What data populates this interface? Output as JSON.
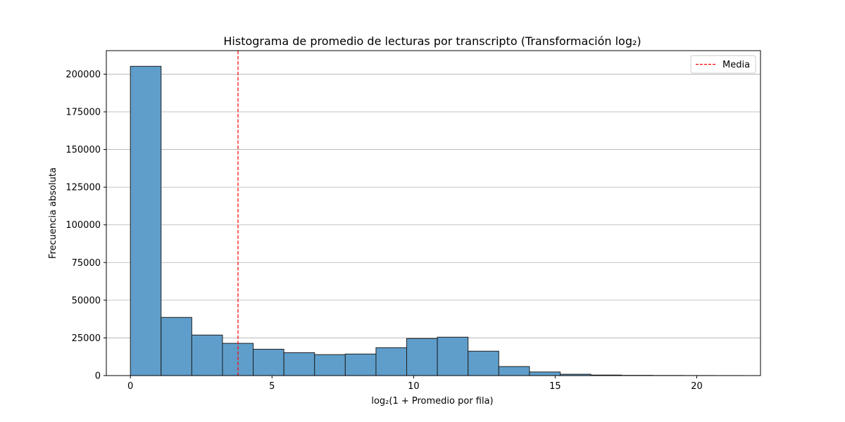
{
  "chart_data": {
    "type": "bar",
    "title": "Histograma de promedio de lecturas por transcripto (Transformación log₂)",
    "xlabel": "log₂(1 + Promedio por fila)",
    "ylabel": "Frecuencia absoluta",
    "xlim": [
      -0.85,
      22.25
    ],
    "ylim": [
      0,
      215600
    ],
    "xticks": [
      0,
      5,
      10,
      15,
      20
    ],
    "yticks": [
      0,
      25000,
      50000,
      75000,
      100000,
      125000,
      150000,
      175000,
      200000
    ],
    "grid": {
      "axis": "y",
      "enabled": true
    },
    "bar_color": "#5f9ecb",
    "bar_edge_color": "#1f1f1f",
    "bins": {
      "start": 0.0,
      "width": 1.084,
      "counts": [
        205200,
        38600,
        26900,
        21400,
        17500,
        15200,
        13900,
        14300,
        18500,
        24600,
        25500,
        16200,
        6000,
        2400,
        900,
        350,
        150,
        80,
        40,
        20
      ]
    },
    "reference_line": {
      "x": 3.8,
      "color": "#ff0000",
      "style": "dashed"
    },
    "legend": {
      "position": "top-right",
      "entries": [
        {
          "label": "Media",
          "color": "#ff0000",
          "style": "dashed"
        }
      ]
    }
  }
}
